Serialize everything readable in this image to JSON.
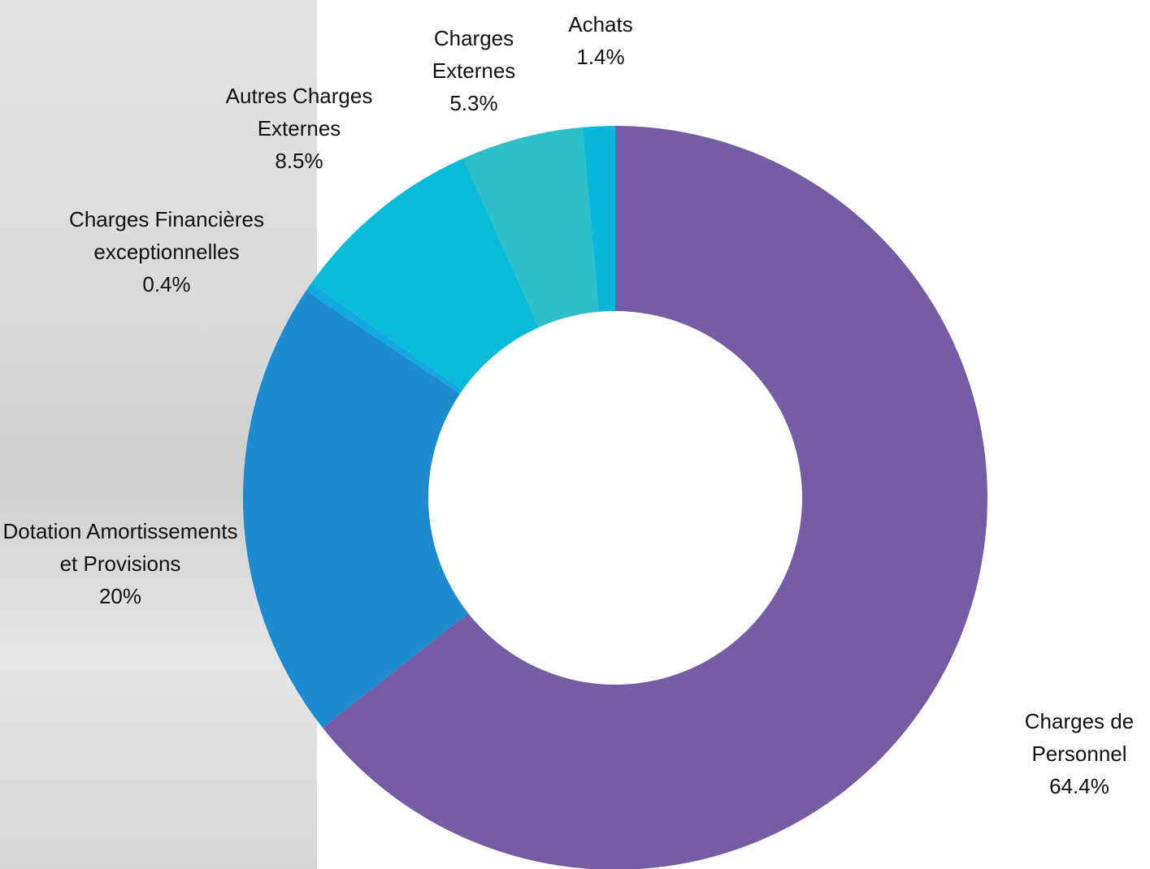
{
  "chart_data": {
    "type": "donut",
    "categories": [
      "Charges de Personnel",
      "Dotation Amortissements et Provisions",
      "Charges Financières exceptionnelles",
      "Autres Charges Externes",
      "Charges Externes",
      "Achats"
    ],
    "values": [
      64.4,
      20,
      0.4,
      8.5,
      5.3,
      1.4
    ],
    "value_labels": [
      "64.4%",
      "20%",
      "0.4%",
      "8.5%",
      "5.3%",
      "1.4%"
    ],
    "colors": [
      "#765ba5",
      "#1d8bcd",
      "#12a8e0",
      "#0abbd9",
      "#2ebfc8",
      "#08b7db"
    ]
  }
}
